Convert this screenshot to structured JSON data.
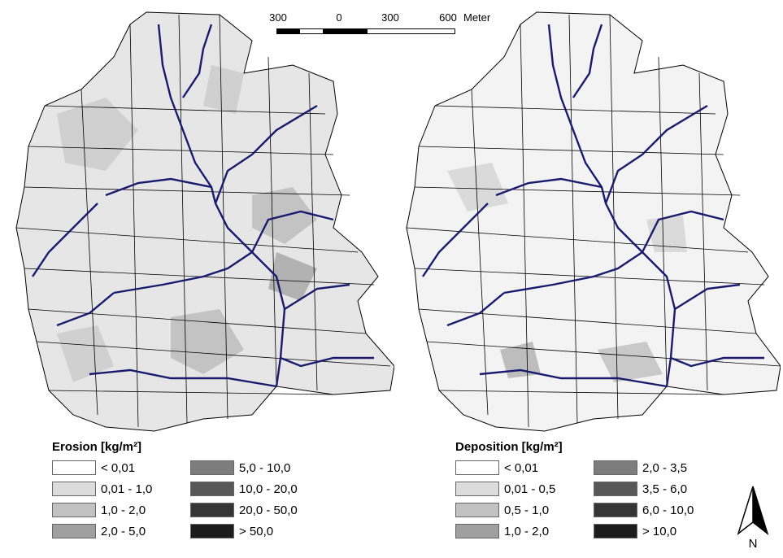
{
  "scale_bar": {
    "labels": [
      "300",
      "0",
      "300",
      "600"
    ],
    "unit": "Meter"
  },
  "maps": [
    {
      "id": "erosion",
      "legend_title": "Erosion [kg/m²]",
      "classes": [
        {
          "label": "< 0,01",
          "color": "#ffffff"
        },
        {
          "label": "0,01 - 1,0",
          "color": "#dcdcdc"
        },
        {
          "label": "1,0 - 2,0",
          "color": "#c2c2c2"
        },
        {
          "label": "2,0 - 5,0",
          "color": "#a0a0a0"
        },
        {
          "label": "5,0 - 10,0",
          "color": "#7d7d7d"
        },
        {
          "label": "10,0 - 20,0",
          "color": "#585858"
        },
        {
          "label": "20,0 - 50,0",
          "color": "#363636"
        },
        {
          "label": "> 50,0",
          "color": "#1c1c1c"
        }
      ]
    },
    {
      "id": "deposition",
      "legend_title": "Deposition [kg/m²]",
      "classes": [
        {
          "label": "< 0,01",
          "color": "#ffffff"
        },
        {
          "label": "0,01 - 0,5",
          "color": "#dcdcdc"
        },
        {
          "label": "0,5 - 1,0",
          "color": "#c2c2c2"
        },
        {
          "label": "1,0 - 2,0",
          "color": "#a0a0a0"
        },
        {
          "label": "2,0 - 3,5",
          "color": "#7d7d7d"
        },
        {
          "label": "3,5 - 6,0",
          "color": "#585858"
        },
        {
          "label": "6,0 - 10,0",
          "color": "#363636"
        },
        {
          "label": "> 10,0",
          "color": "#1c1c1c"
        }
      ]
    }
  ],
  "north_arrow": {
    "label": "N"
  },
  "colors": {
    "stream": "#1a1a6e",
    "boundary": "#000000"
  }
}
